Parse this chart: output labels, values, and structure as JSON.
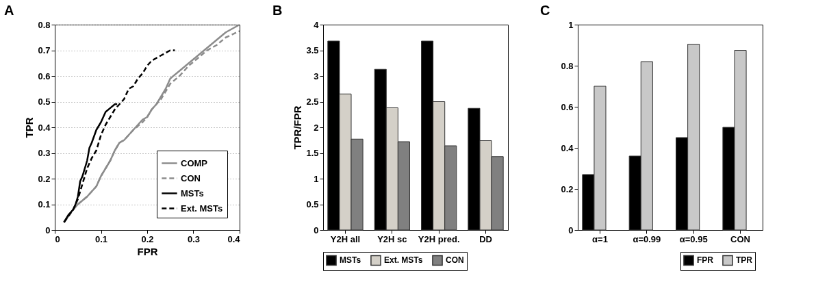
{
  "chart_data": [
    {
      "type": "line",
      "title": "A",
      "xlabel": "FPR",
      "ylabel": "TPR",
      "xlim": [
        0,
        0.4
      ],
      "xticks": [
        0,
        0.1,
        0.2,
        0.3,
        0.4
      ],
      "ylim": [
        0,
        0.8
      ],
      "yticks": [
        0,
        0.1,
        0.2,
        0.3,
        0.4,
        0.5,
        0.6,
        0.7,
        0.8
      ],
      "grid": "y",
      "legend": "bottom right",
      "series": [
        {
          "name": "COMP",
          "color": "#8c8c8c",
          "line_style": "solid",
          "x": [
            0.02,
            0.04,
            0.05,
            0.07,
            0.08,
            0.09,
            0.1,
            0.11,
            0.12,
            0.13,
            0.14,
            0.15,
            0.17,
            0.19,
            0.2,
            0.21,
            0.22,
            0.23,
            0.24,
            0.25,
            0.27,
            0.29,
            0.31,
            0.33,
            0.35,
            0.37,
            0.39,
            0.4
          ],
          "values": [
            0.03,
            0.08,
            0.1,
            0.13,
            0.15,
            0.17,
            0.21,
            0.24,
            0.27,
            0.31,
            0.34,
            0.35,
            0.39,
            0.43,
            0.44,
            0.47,
            0.49,
            0.52,
            0.55,
            0.59,
            0.62,
            0.65,
            0.68,
            0.71,
            0.74,
            0.77,
            0.79,
            0.8
          ]
        },
        {
          "name": "CON",
          "color": "#8c8c8c",
          "line_style": "dashed",
          "x": [
            0.02,
            0.04,
            0.05,
            0.07,
            0.08,
            0.09,
            0.1,
            0.11,
            0.12,
            0.13,
            0.14,
            0.15,
            0.17,
            0.19,
            0.2,
            0.21,
            0.22,
            0.23,
            0.24,
            0.25,
            0.27,
            0.29,
            0.31,
            0.33,
            0.35,
            0.37,
            0.4
          ],
          "values": [
            0.03,
            0.08,
            0.1,
            0.13,
            0.15,
            0.17,
            0.21,
            0.24,
            0.27,
            0.31,
            0.34,
            0.35,
            0.39,
            0.42,
            0.44,
            0.47,
            0.49,
            0.51,
            0.54,
            0.57,
            0.6,
            0.64,
            0.67,
            0.7,
            0.72,
            0.75,
            0.775
          ]
        },
        {
          "name": "MSTs",
          "color": "#000000",
          "line_style": "solid",
          "x": [
            0.02,
            0.03,
            0.04,
            0.045,
            0.05,
            0.055,
            0.06,
            0.065,
            0.07,
            0.075,
            0.08,
            0.09,
            0.1,
            0.11,
            0.12,
            0.13,
            0.135
          ],
          "values": [
            0.03,
            0.06,
            0.08,
            0.1,
            0.13,
            0.19,
            0.21,
            0.24,
            0.27,
            0.32,
            0.34,
            0.39,
            0.42,
            0.46,
            0.475,
            0.49,
            0.49
          ]
        },
        {
          "name": "Ext. MSTs",
          "color": "#000000",
          "line_style": "dashed",
          "x": [
            0.02,
            0.04,
            0.05,
            0.06,
            0.07,
            0.08,
            0.09,
            0.1,
            0.11,
            0.12,
            0.13,
            0.14,
            0.15,
            0.16,
            0.17,
            0.18,
            0.19,
            0.2,
            0.21,
            0.22,
            0.23,
            0.24,
            0.25,
            0.26
          ],
          "values": [
            0.03,
            0.08,
            0.12,
            0.18,
            0.24,
            0.28,
            0.31,
            0.37,
            0.41,
            0.44,
            0.47,
            0.49,
            0.51,
            0.55,
            0.56,
            0.59,
            0.61,
            0.64,
            0.66,
            0.67,
            0.68,
            0.69,
            0.7,
            0.7
          ]
        }
      ]
    },
    {
      "type": "bar",
      "title": "B",
      "ylabel": "TPR/FPR",
      "categories": [
        "Y2H all",
        "Y2H sc",
        "Y2H pred.",
        "DD"
      ],
      "ylim": [
        0,
        4
      ],
      "yticks": [
        0,
        0.5,
        1,
        1.5,
        2,
        2.5,
        3,
        3.5,
        4
      ],
      "legend": "bottom left",
      "series": [
        {
          "name": "MSTs",
          "color": "#000000",
          "values": [
            3.68,
            3.13,
            3.68,
            2.37
          ]
        },
        {
          "name": "Ext. MSTs",
          "color": "#d4d0c8",
          "values": [
            2.65,
            2.38,
            2.5,
            1.74
          ]
        },
        {
          "name": "CON",
          "color": "#808080",
          "values": [
            1.77,
            1.72,
            1.64,
            1.43
          ]
        }
      ]
    },
    {
      "type": "bar",
      "title": "C",
      "categories": [
        "α=1",
        "α=0.99",
        "α=0.95",
        "CON"
      ],
      "ylim": [
        0,
        1
      ],
      "yticks": [
        0,
        0.2,
        0.4,
        0.6,
        0.8,
        1
      ],
      "legend": "bottom right",
      "series": [
        {
          "name": "FPR",
          "color": "#000000",
          "values": [
            0.27,
            0.36,
            0.45,
            0.5
          ]
        },
        {
          "name": "TPR",
          "color": "#c8c8c8",
          "values": [
            0.7,
            0.82,
            0.905,
            0.875
          ]
        }
      ]
    }
  ]
}
